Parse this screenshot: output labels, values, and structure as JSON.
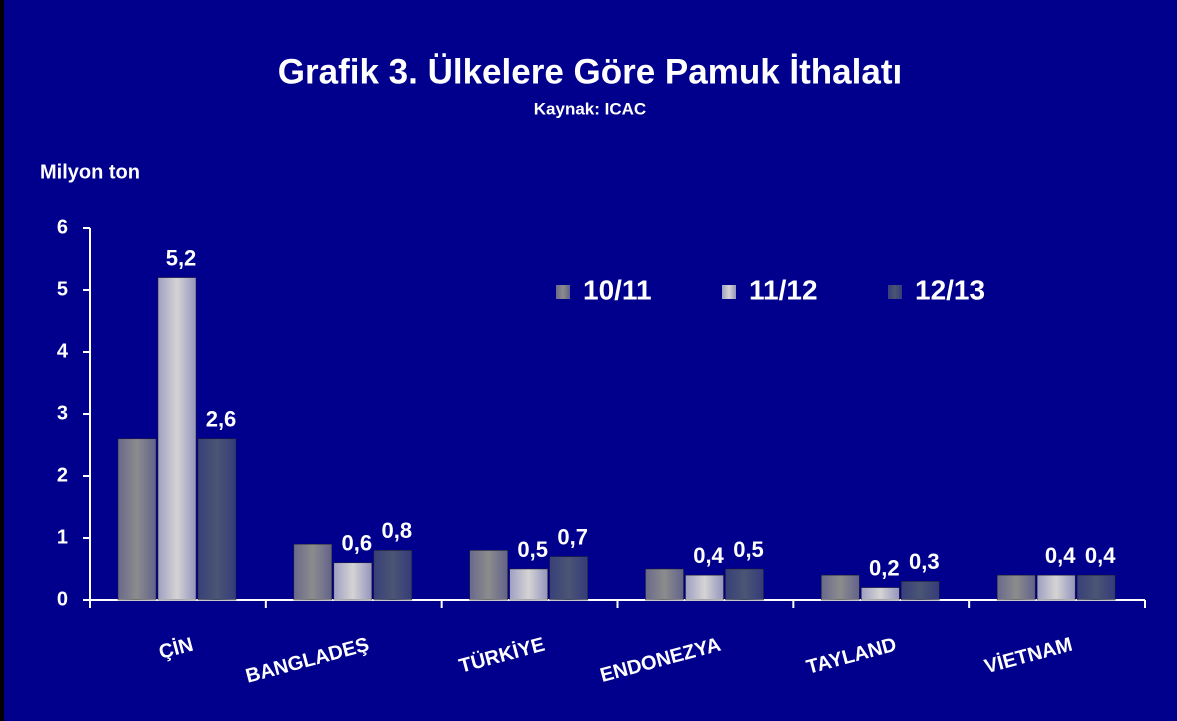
{
  "chart_data": {
    "type": "bar",
    "title": "Grafik 3. Ülkelere Göre Pamuk İthalatı",
    "subtitle": "Kaynak: ICAC",
    "y_label": "Milyon ton",
    "categories": [
      "ÇİN",
      "BANGLADEŞ",
      "TÜRKİYE",
      "ENDONEZYA",
      "TAYLAND",
      "VİETNAM"
    ],
    "series": [
      {
        "name": "10/11",
        "color": "#8c8c8c",
        "values": [
          2.6,
          0.9,
          0.8,
          0.5,
          0.4,
          0.4
        ]
      },
      {
        "name": "11/12",
        "color": "#d4d4d4",
        "values": [
          5.2,
          0.6,
          0.5,
          0.4,
          0.2,
          0.4
        ],
        "value_labels": [
          "5,2",
          "0,6",
          "0,5",
          "0,4",
          "0,2",
          "0,4"
        ]
      },
      {
        "name": "12/13",
        "color": "#4b5573",
        "values": [
          2.6,
          0.8,
          0.7,
          0.5,
          0.3,
          0.4
        ],
        "value_labels": [
          "2,6",
          "0,8",
          "0,7",
          "0,5",
          "0,3",
          "0,4"
        ]
      }
    ],
    "ylim": [
      0,
      6
    ],
    "yticks": [
      0,
      1,
      2,
      3,
      4,
      5,
      6
    ],
    "legend": "upper right"
  }
}
